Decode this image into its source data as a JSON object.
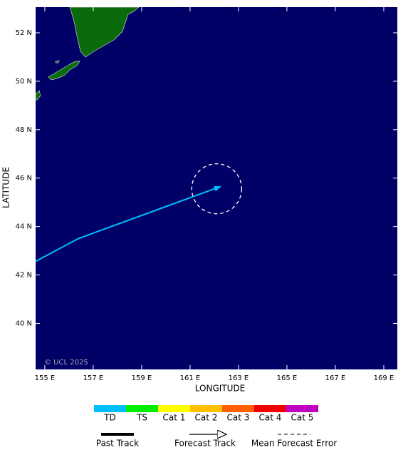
{
  "map": {
    "xlabel": "LONGITUDE",
    "ylabel": "LATITUDE",
    "xlim": [
      154.62,
      169.56
    ],
    "ylim": [
      38.1,
      53.06
    ],
    "xticks": [
      {
        "value": 155,
        "label": "155 E"
      },
      {
        "value": 157,
        "label": "157 E"
      },
      {
        "value": 159,
        "label": "159 E"
      },
      {
        "value": 161,
        "label": "161 E"
      },
      {
        "value": 163,
        "label": "163 E"
      },
      {
        "value": 165,
        "label": "165 E"
      },
      {
        "value": 167,
        "label": "167 E"
      },
      {
        "value": 169,
        "label": "169 E"
      }
    ],
    "yticks": [
      {
        "value": 40,
        "label": "40 N"
      },
      {
        "value": 42,
        "label": "42 N"
      },
      {
        "value": 44,
        "label": "44 N"
      },
      {
        "value": 46,
        "label": "46 N"
      },
      {
        "value": 48,
        "label": "48 N"
      },
      {
        "value": 50,
        "label": "50 N"
      },
      {
        "value": 52,
        "label": "52 N"
      }
    ],
    "track": {
      "lon": [
        154.62,
        156.38,
        162.26
      ],
      "lat": [
        42.56,
        43.5,
        45.65
      ]
    },
    "forecast_error": {
      "lon": 162.1,
      "lat": 45.56,
      "radius_deg": 1.03
    },
    "copyright": "© UCL 2025"
  },
  "legend": {
    "categories": [
      {
        "name": "TD",
        "color": "#00bfff"
      },
      {
        "name": "TS",
        "color": "#00ee00"
      },
      {
        "name": "Cat 1",
        "color": "#ffff00"
      },
      {
        "name": "Cat 2",
        "color": "#ffc000"
      },
      {
        "name": "Cat 3",
        "color": "#ff6000"
      },
      {
        "name": "Cat 4",
        "color": "#ee0000"
      },
      {
        "name": "Cat 5",
        "color": "#c000c0"
      }
    ],
    "past_track": "Past Track",
    "forecast_track": "Forecast Track",
    "mean_forecast_error": "Mean Forecast Error"
  }
}
